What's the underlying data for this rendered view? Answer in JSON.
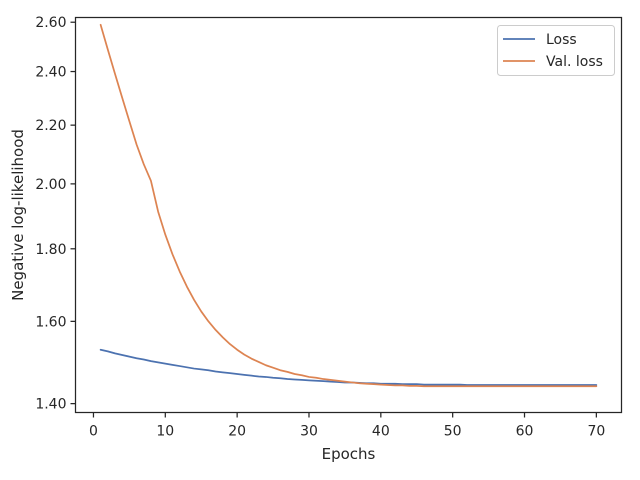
{
  "chart_data": {
    "type": "line",
    "title": "",
    "xlabel": "Epochs",
    "ylabel": "Negative log-likelihood",
    "yscale": "log",
    "xlim": [
      -2.5,
      73.5
    ],
    "ylim": [
      1.38,
      2.62
    ],
    "grid": false,
    "legend_position": "top-right",
    "x_ticks": [
      0,
      10,
      20,
      30,
      40,
      50,
      60,
      70
    ],
    "x_tick_labels": [
      "0",
      "10",
      "20",
      "30",
      "40",
      "50",
      "60",
      "70"
    ],
    "y_ticks": [
      1.4,
      1.6,
      1.8,
      2.0,
      2.2,
      2.4,
      2.6
    ],
    "y_tick_labels": [
      "1.40",
      "1.60",
      "1.80",
      "2.00",
      "2.20",
      "2.40",
      "2.60"
    ],
    "x": [
      1,
      2,
      3,
      4,
      5,
      6,
      7,
      8,
      9,
      10,
      11,
      12,
      13,
      14,
      15,
      16,
      17,
      18,
      19,
      20,
      21,
      22,
      23,
      24,
      25,
      26,
      27,
      28,
      29,
      30,
      31,
      32,
      33,
      34,
      35,
      36,
      37,
      38,
      39,
      40,
      41,
      42,
      43,
      44,
      45,
      46,
      47,
      48,
      49,
      50,
      51,
      52,
      53,
      54,
      55,
      56,
      57,
      58,
      59,
      60,
      61,
      62,
      63,
      64,
      65,
      66,
      67,
      68,
      69,
      70
    ],
    "series": [
      {
        "name": "Loss",
        "color": "#4c72b0",
        "values": [
          1.528,
          1.524,
          1.519,
          1.515,
          1.511,
          1.507,
          1.504,
          1.5,
          1.497,
          1.494,
          1.491,
          1.488,
          1.485,
          1.482,
          1.48,
          1.478,
          1.475,
          1.473,
          1.471,
          1.469,
          1.467,
          1.465,
          1.463,
          1.462,
          1.46,
          1.459,
          1.457,
          1.456,
          1.455,
          1.454,
          1.453,
          1.452,
          1.451,
          1.45,
          1.449,
          1.449,
          1.448,
          1.447,
          1.447,
          1.446,
          1.446,
          1.446,
          1.445,
          1.445,
          1.445,
          1.444,
          1.444,
          1.444,
          1.444,
          1.444,
          1.444,
          1.443,
          1.443,
          1.443,
          1.443,
          1.443,
          1.443,
          1.443,
          1.443,
          1.443,
          1.443,
          1.443,
          1.443,
          1.443,
          1.443,
          1.443,
          1.443,
          1.443,
          1.443,
          1.443
        ]
      },
      {
        "name": "Val. loss",
        "color": "#dd8452",
        "values": [
          2.589,
          2.487,
          2.391,
          2.3,
          2.214,
          2.132,
          2.065,
          2.01,
          1.912,
          1.842,
          1.784,
          1.735,
          1.693,
          1.657,
          1.626,
          1.6,
          1.578,
          1.559,
          1.542,
          1.528,
          1.516,
          1.506,
          1.498,
          1.49,
          1.484,
          1.478,
          1.474,
          1.469,
          1.466,
          1.462,
          1.46,
          1.457,
          1.455,
          1.453,
          1.451,
          1.449,
          1.447,
          1.446,
          1.445,
          1.444,
          1.443,
          1.442,
          1.442,
          1.441,
          1.441,
          1.44,
          1.44,
          1.44,
          1.44,
          1.44,
          1.44,
          1.44,
          1.44,
          1.44,
          1.44,
          1.44,
          1.44,
          1.44,
          1.44,
          1.44,
          1.44,
          1.44,
          1.44,
          1.44,
          1.44,
          1.44,
          1.44,
          1.44,
          1.44,
          1.44
        ]
      }
    ]
  }
}
